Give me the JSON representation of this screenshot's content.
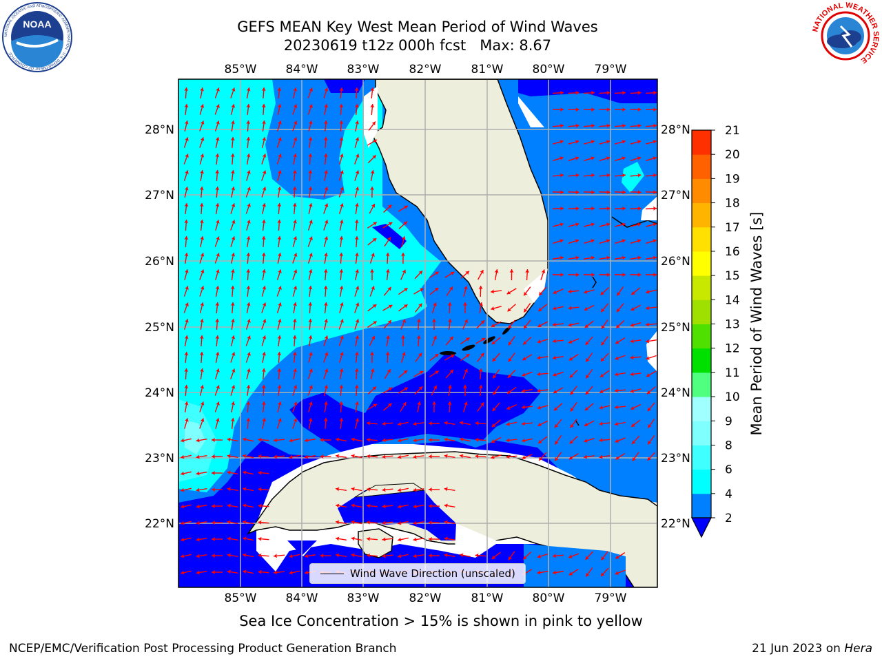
{
  "header": {
    "title": "GEFS MEAN Key West Mean Period of Wind Waves",
    "subtitle": "20230619 t12z 000h fcst   Max: 8.67"
  },
  "logos": {
    "noaa_text": "NOAA",
    "noaa_ring_text": "NATIONAL OCEANIC AND ATMOSPHERIC ADMINISTRATION · U.S. DEPARTMENT OF COMMERCE",
    "nws_ring_text": "NATIONAL WEATHER SERVICE"
  },
  "map": {
    "lon_labels": [
      "85°W",
      "84°W",
      "83°W",
      "82°W",
      "81°W",
      "80°W",
      "79°W"
    ],
    "lat_labels": [
      "28°N",
      "27°N",
      "26°N",
      "25°N",
      "24°N",
      "23°N",
      "22°N"
    ],
    "legend_label": "Wind Wave Direction (unscaled)",
    "colors": {
      "land": "#eeeedd",
      "coast": "#000000",
      "grid": "#b0b0b0",
      "arrow": "#ff0000"
    }
  },
  "colorbar": {
    "label": "Mean Period of Wind Waves [s]",
    "tick_labels": [
      "2",
      "4",
      "6",
      "8",
      "9",
      "10",
      "11",
      "12",
      "13",
      "14",
      "15",
      "16",
      "17",
      "18",
      "19",
      "20",
      "21"
    ],
    "colors": [
      "#0000ff",
      "#0080ff",
      "#00ffff",
      "#40ffff",
      "#80ffff",
      "#a0ffff",
      "#50ff80",
      "#00e000",
      "#50e000",
      "#a0e000",
      "#c8e800",
      "#ffff00",
      "#ffe000",
      "#ffb400",
      "#ff8c00",
      "#ff6000",
      "#ff3000",
      "#ff0000"
    ]
  },
  "footer": {
    "note": "Sea Ice Concentration > 15% is shown in pink to yellow",
    "credit": "NCEP/EMC/Verification Post Processing Product Generation Branch",
    "date": "21 Jun 2023 on",
    "host": "Hera"
  }
}
